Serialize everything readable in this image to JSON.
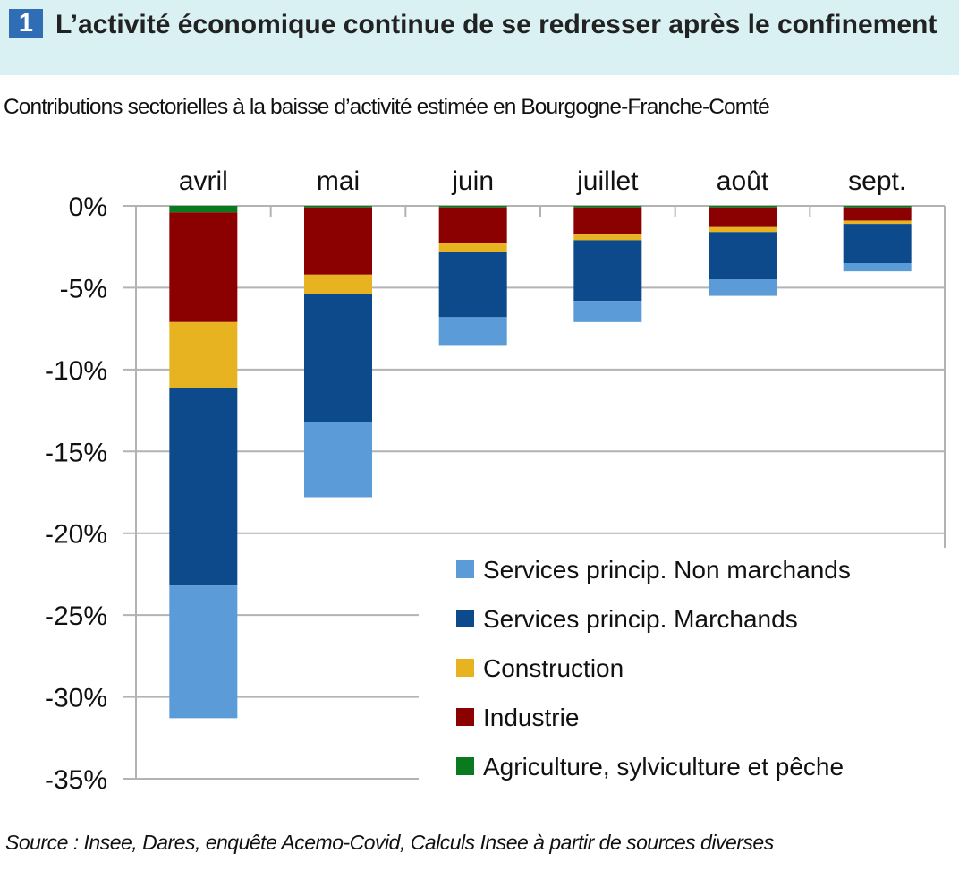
{
  "header": {
    "number": "1",
    "title": "L’activité économique continue de se redresser après le confinement",
    "subtitle": "Contributions sectorielles à la baisse d’activité estimée en Bourgogne-Franche-Comté"
  },
  "footer": {
    "source": "Source : Insee, Dares, enquête Acemo-Covid, Calculs Insee à partir de sources diverses"
  },
  "chart_data": {
    "type": "bar",
    "stacked": true,
    "categories": [
      "avril",
      "mai",
      "juin",
      "juillet",
      "août",
      "sept."
    ],
    "category_axis_position": "top",
    "y_tick_labels": [
      "0%",
      "-5%",
      "-10%",
      "-15%",
      "-20%",
      "-25%",
      "-30%",
      "-35%"
    ],
    "ylim": [
      -35,
      0
    ],
    "grid": true,
    "legend_position": "bottom-right",
    "series": [
      {
        "name": "Agriculture, sylviculture et pêche",
        "color": "#0a7a1e",
        "values": [
          -0.4,
          -0.1,
          -0.1,
          -0.1,
          -0.1,
          -0.1
        ]
      },
      {
        "name": "Industrie",
        "color": "#8b0000",
        "values": [
          -6.7,
          -4.1,
          -2.2,
          -1.6,
          -1.2,
          -0.8
        ]
      },
      {
        "name": "Construction",
        "color": "#e8b321",
        "values": [
          -4.0,
          -1.2,
          -0.5,
          -0.4,
          -0.3,
          -0.2
        ]
      },
      {
        "name": "Services princip. Marchands",
        "color": "#0d4a8c",
        "values": [
          -12.1,
          -7.8,
          -4.0,
          -3.7,
          -2.9,
          -2.4
        ]
      },
      {
        "name": "Services princip. Non marchands",
        "color": "#5b9bd8",
        "values": [
          -8.1,
          -4.6,
          -1.7,
          -1.3,
          -1.0,
          -0.5
        ]
      }
    ],
    "legend_order": [
      "Services princip. Non marchands",
      "Services princip. Marchands",
      "Construction",
      "Industrie",
      "Agriculture, sylviculture et pêche"
    ]
  }
}
